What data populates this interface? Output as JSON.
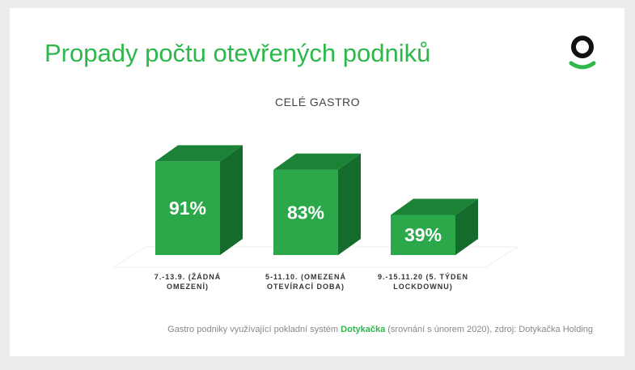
{
  "chart_data": {
    "type": "bar3d",
    "title": "Propady počtu otevřených podniků",
    "subtitle": "CELÉ GASTRO",
    "categories": [
      "7.-13.9. (ŽÁDNÁ OMEZENÍ)",
      "5-11.10. (OMEZENÁ OTEVÍRACÍ DOBA)",
      "9.-15.11.20 (5. TÝDEN LOCKDOWNU)"
    ],
    "values": [
      91,
      83,
      39
    ],
    "value_labels": [
      "91%",
      "83%",
      "39%"
    ],
    "color": "#2aa84a",
    "footnote": {
      "before": "Gastro podniky využívající pokladní systém",
      "brand": "Dotykačka",
      "after": "(srovnání s únorem 2020), zdroj: Dotykačka Holding"
    }
  }
}
